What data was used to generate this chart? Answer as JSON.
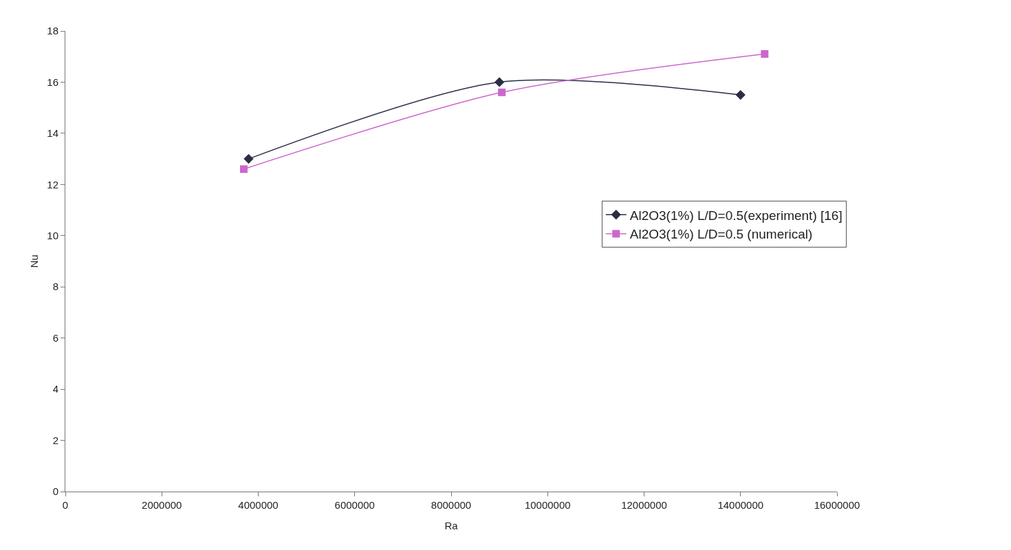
{
  "chart_data": {
    "type": "line",
    "xlabel": "Ra",
    "ylabel": "Nu",
    "series": [
      {
        "name": "Al2O3(1%) L/D=0.5(experiment) [16]",
        "color": "#2b2d45",
        "marker": "diamond",
        "x": [
          3800000,
          9000000,
          14000000
        ],
        "values": [
          13,
          16,
          15.5
        ]
      },
      {
        "name": "Al2O3(1%) L/D=0.5 (numerical)",
        "color": "#cc66cc",
        "marker": "square",
        "x": [
          3700000,
          9050000,
          14500000
        ],
        "values": [
          12.6,
          15.6,
          17.1
        ]
      }
    ],
    "xlim": [
      0,
      16000000
    ],
    "xticks": [
      0,
      2000000,
      4000000,
      6000000,
      8000000,
      10000000,
      12000000,
      14000000,
      16000000
    ],
    "ylim": [
      0,
      18
    ],
    "yticks": [
      0,
      2,
      4,
      6,
      8,
      10,
      12,
      14,
      16,
      18
    ],
    "grid": false,
    "legend": "right",
    "line_style": "solid"
  }
}
